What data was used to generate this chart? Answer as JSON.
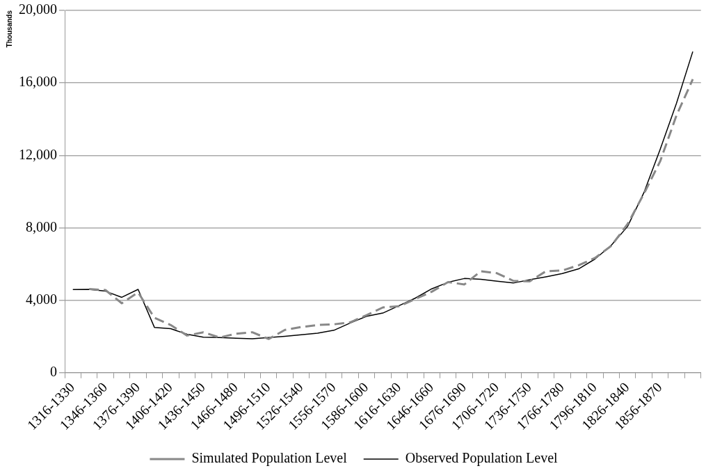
{
  "chart_data": {
    "type": "line",
    "ylabel": "Thousands",
    "categories": [
      "1316-1330",
      null,
      "1346-1360",
      null,
      "1376-1390",
      null,
      "1406-1420",
      null,
      "1436-1450",
      null,
      "1466-1480",
      null,
      "1496-1510",
      null,
      "1526-1540",
      null,
      "1556-1570",
      null,
      "1586-1600",
      null,
      "1616-1630",
      null,
      "1646-1660",
      null,
      "1676-1690",
      null,
      "1706-1720",
      null,
      "1736-1750",
      null,
      "1766-1780",
      null,
      "1796-1810",
      null,
      "1826-1840",
      null,
      "1856-1870",
      null,
      null
    ],
    "series": [
      {
        "name": "Simulated Population Level",
        "color": "#888888",
        "line_style": "dashed",
        "values": [
          null,
          4620,
          4560,
          3830,
          4430,
          3030,
          2630,
          2050,
          2230,
          1940,
          2150,
          2230,
          1860,
          2360,
          2520,
          2630,
          2670,
          2780,
          3170,
          3600,
          3670,
          4070,
          4470,
          5000,
          4870,
          5600,
          5490,
          5070,
          5040,
          5600,
          5640,
          5930,
          6330,
          7000,
          8200,
          9870,
          11670,
          14200,
          16200
        ]
      },
      {
        "name": "Observed Population Level",
        "color": "#000000",
        "line_style": "solid",
        "values": [
          4590,
          4600,
          4500,
          4160,
          4600,
          2500,
          2430,
          2120,
          1960,
          1940,
          1900,
          1870,
          1940,
          2010,
          2090,
          2180,
          2340,
          2740,
          3110,
          3290,
          3700,
          4120,
          4630,
          4990,
          5200,
          5160,
          5050,
          4950,
          5130,
          5290,
          5470,
          5730,
          6270,
          7030,
          8070,
          9930,
          12330,
          14870,
          17730
        ]
      }
    ],
    "ylim": [
      0,
      20000
    ],
    "yticks": [
      {
        "value": 0,
        "label": "0"
      },
      {
        "value": 4000,
        "label": "4,000"
      },
      {
        "value": 8000,
        "label": "8,000"
      },
      {
        "value": 12000,
        "label": "12,000"
      },
      {
        "value": 16000,
        "label": "16,000"
      },
      {
        "value": 20000,
        "label": "20,000"
      }
    ],
    "grid": "y",
    "legend": "bottom",
    "marker": "none"
  }
}
